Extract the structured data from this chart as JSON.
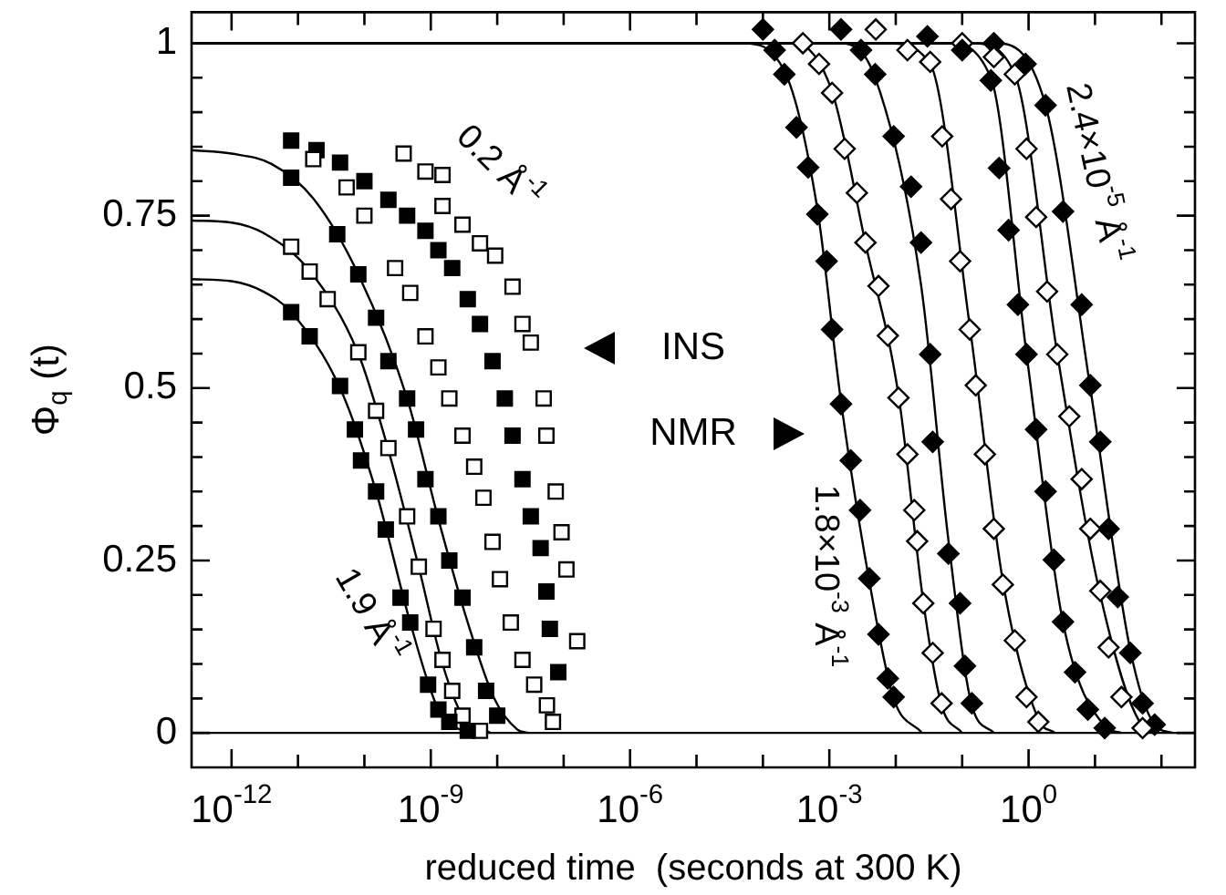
{
  "chart_data": {
    "type": "scatter",
    "xlabel": "reduced time  (seconds at 300 K)",
    "ylabel": "Φ$_{q}$ (t)",
    "log": "x",
    "xlim": [
      2.5e-13,
      320
    ],
    "ylim": [
      -0.05,
      1.045
    ],
    "xticks": [
      {
        "value": 1e-12,
        "label": "10$^{-12}$"
      },
      {
        "value": 1e-11,
        "label": null
      },
      {
        "value": 1e-10,
        "label": null
      },
      {
        "value": 1e-09,
        "label": "10$^{-9}$"
      },
      {
        "value": 1e-08,
        "label": null
      },
      {
        "value": 1e-07,
        "label": null
      },
      {
        "value": 1e-06,
        "label": "10$^{-6}$"
      },
      {
        "value": 1e-05,
        "label": null
      },
      {
        "value": 0.0001,
        "label": null
      },
      {
        "value": 0.001,
        "label": "10$^{-3}$"
      },
      {
        "value": 0.01,
        "label": null
      },
      {
        "value": 0.1,
        "label": null
      },
      {
        "value": 1,
        "label": "10$^{0}$"
      },
      {
        "value": 10,
        "label": null
      },
      {
        "value": 100,
        "label": null
      }
    ],
    "yticks": [
      0,
      {
        "value": 0.05,
        "label": null
      },
      {
        "value": 0.1,
        "label": null
      },
      {
        "value": 0.15,
        "label": null
      },
      {
        "value": 0.2,
        "label": null
      },
      0.25,
      {
        "value": 0.3,
        "label": null
      },
      {
        "value": 0.35,
        "label": null
      },
      {
        "value": 0.4,
        "label": null
      },
      {
        "value": 0.45,
        "label": null
      },
      0.5,
      {
        "value": 0.55,
        "label": null
      },
      {
        "value": 0.6,
        "label": null
      },
      {
        "value": 0.65,
        "label": null
      },
      {
        "value": 0.7,
        "label": null
      },
      0.75,
      {
        "value": 0.8,
        "label": null
      },
      {
        "value": 0.85,
        "label": null
      },
      {
        "value": 0.9,
        "label": null
      },
      {
        "value": 0.95,
        "label": null
      },
      1
    ],
    "ref_lines": [
      {
        "axis": "y",
        "value": 0,
        "color": "#000000"
      }
    ],
    "annotations": [
      "INS",
      "NMR",
      "0.2 Å$^{-1}$",
      "1.9 Å$^{-1}$",
      "1.8×10$^{-3}$ Å$^{-1}$",
      "2.4×10$^{-5}$ Å$^{-1}$"
    ],
    "series": [
      {
        "marker": "square",
        "color": "#000000",
        "x": [
          7.9e-12,
          1.5e-11,
          4.3e-11,
          7.2e-11,
          8.9e-11,
          1.5e-10,
          2.1e-10,
          3.5e-10,
          4.9e-10,
          9.1e-10,
          1.3e-09,
          1.9e-09,
          3.6e-09
        ],
        "values": [
          0.61,
          0.575,
          0.503,
          0.44,
          0.395,
          0.35,
          0.295,
          0.196,
          0.16,
          0.07,
          0.034,
          0.016,
          0.003
        ]
      },
      {
        "marker": "square",
        "color": "#ffffff",
        "x": [
          7.9e-12,
          1.5e-11,
          2.8e-11,
          8.1e-11,
          1.5e-10,
          2.3e-10,
          4.4e-10,
          6.6e-10,
          1.1e-09,
          1.5e-09,
          2.1e-09,
          3e-09,
          5.5e-09
        ],
        "values": [
          0.705,
          0.669,
          0.629,
          0.552,
          0.467,
          0.413,
          0.314,
          0.241,
          0.151,
          0.106,
          0.061,
          0.025,
          0.003
        ]
      },
      {
        "marker": "square",
        "color": "#000000",
        "x": [
          7.9e-12,
          3.9e-11,
          8.1e-11,
          1.5e-10,
          2.3e-10,
          4.4e-10,
          6e-10,
          8.3e-10,
          1.3e-09,
          1.9e-09,
          3e-09,
          4.5e-09,
          6.8e-09,
          1e-08
        ],
        "values": [
          0.805,
          0.723,
          0.665,
          0.602,
          0.539,
          0.485,
          0.44,
          0.368,
          0.314,
          0.25,
          0.196,
          0.124,
          0.061,
          0.025
        ]
      },
      {
        "marker": "square",
        "color": "#ffffff",
        "x": [
          1.7e-11,
          5.4e-11,
          1e-10,
          2.9e-10,
          4.9e-10,
          8.3e-10,
          1.3e-09,
          1.9e-09,
          3e-09,
          4.5e-09,
          6.2e-09,
          8.5e-09,
          1.1e-08,
          1.6e-08,
          2.4e-08,
          3.6e-08,
          6.9e-08
        ],
        "values": [
          0.832,
          0.791,
          0.75,
          0.674,
          0.638,
          0.575,
          0.53,
          0.485,
          0.431,
          0.386,
          0.341,
          0.277,
          0.223,
          0.16,
          0.106,
          0.07,
          0.016
        ]
      },
      {
        "marker": "square",
        "color": "#000000",
        "x": [
          7.9e-12,
          1.9e-11,
          4.3e-11,
          1e-10,
          2.3e-10,
          4.4e-10,
          8.3e-10,
          1.3e-09,
          2.1e-09,
          3.6e-09,
          5.5e-09,
          8.5e-09,
          1.3e-08,
          1.7e-08,
          2.4e-08,
          3.2e-08,
          4.5e-08,
          5.5e-08,
          6.2e-08,
          8.3e-08
        ],
        "values": [
          0.859,
          0.845,
          0.827,
          0.8,
          0.773,
          0.75,
          0.728,
          0.7,
          0.674,
          0.629,
          0.593,
          0.539,
          0.485,
          0.431,
          0.368,
          0.314,
          0.268,
          0.205,
          0.151,
          0.088
        ]
      },
      {
        "marker": "square",
        "color": "#ffffff",
        "x": [
          3.9e-10,
          8.3e-10,
          1.5e-09,
          1.5e-09,
          3e-09,
          5.5e-09,
          9.3e-09,
          1.7e-08,
          2.4e-08,
          3.2e-08,
          5e-08,
          5.5e-08,
          7.6e-08,
          9.3e-08,
          1.1e-07,
          1.6e-07,
          5.6e-08
        ],
        "values": [
          0.84,
          0.814,
          0.809,
          0.764,
          0.737,
          0.71,
          0.692,
          0.647,
          0.593,
          0.566,
          0.485,
          0.431,
          0.35,
          0.291,
          0.237,
          0.133,
          0.04
        ]
      },
      {
        "marker": "diamond",
        "color": "#000000",
        "x": [
          0.0001,
          0.00015,
          0.00021,
          0.00032,
          0.00048,
          0.00066,
          0.00091,
          0.0011,
          0.0015,
          0.0021,
          0.0029,
          0.004,
          0.0055,
          0.0076,
          0.0093
        ],
        "values": [
          1.02,
          0.99,
          0.955,
          0.878,
          0.82,
          0.752,
          0.684,
          0.585,
          0.477,
          0.395,
          0.323,
          0.224,
          0.143,
          0.079,
          0.052
        ]
      },
      {
        "marker": "diamond",
        "color": "#ffffff",
        "x": [
          0.0004,
          0.0007,
          0.0011,
          0.0017,
          0.0026,
          0.0035,
          0.0055,
          0.0076,
          0.011,
          0.015,
          0.019,
          0.021,
          0.026,
          0.036,
          0.049
        ],
        "values": [
          1.0,
          0.97,
          0.928,
          0.847,
          0.783,
          0.711,
          0.648,
          0.576,
          0.486,
          0.404,
          0.323,
          0.278,
          0.188,
          0.116,
          0.043
        ]
      },
      {
        "marker": "diamond",
        "color": "#000000",
        "x": [
          0.0015,
          0.003,
          0.0049,
          0.0093,
          0.017,
          0.024,
          0.033,
          0.036,
          0.062,
          0.093,
          0.11,
          0.14
        ],
        "values": [
          1.02,
          0.99,
          0.955,
          0.865,
          0.792,
          0.711,
          0.549,
          0.422,
          0.26,
          0.188,
          0.097,
          0.043
        ]
      },
      {
        "marker": "diamond",
        "color": "#ffffff",
        "x": [
          0.005,
          0.015,
          0.033,
          0.05,
          0.068,
          0.093,
          0.13,
          0.16,
          0.22,
          0.3,
          0.41,
          0.62,
          0.93,
          1.4
        ],
        "values": [
          1.02,
          0.99,
          0.973,
          0.865,
          0.774,
          0.684,
          0.585,
          0.504,
          0.404,
          0.296,
          0.215,
          0.134,
          0.052,
          0.016
        ]
      },
      {
        "marker": "diamond",
        "color": "#000000",
        "x": [
          0.03,
          0.1,
          0.27,
          0.36,
          0.5,
          0.69,
          0.93,
          1.3,
          1.8,
          2.4,
          3.3,
          5.0,
          7.8,
          14
        ],
        "values": [
          1.01,
          0.99,
          0.946,
          0.819,
          0.729,
          0.621,
          0.549,
          0.44,
          0.35,
          0.251,
          0.161,
          0.088,
          0.034,
          0.007
        ]
      },
      {
        "marker": "diamond",
        "color": "#ffffff",
        "x": [
          0.1,
          0.3,
          0.62,
          0.93,
          1.3,
          1.9,
          2.7,
          4.1,
          6.3,
          8.5,
          12,
          16,
          25,
          52
        ],
        "values": [
          1.0,
          0.98,
          0.955,
          0.847,
          0.748,
          0.64,
          0.549,
          0.459,
          0.368,
          0.296,
          0.206,
          0.124,
          0.052,
          0.007
        ]
      },
      {
        "marker": "diamond",
        "color": "#000000",
        "x": [
          0.3,
          0.9,
          1.8,
          3.3,
          6.3,
          8.5,
          12,
          16,
          22,
          34,
          52,
          79
        ],
        "values": [
          1.0,
          0.97,
          0.91,
          0.756,
          0.621,
          0.504,
          0.422,
          0.296,
          0.197,
          0.116,
          0.043,
          0.012
        ]
      },
      {
        "type": "line",
        "marker": "none",
        "color": "#000000",
        "x": [
          2.5e-13,
          1e-12,
          3e-12,
          7.9e-12,
          4.3e-11,
          1.5e-10,
          4.9e-10,
          1.3e-09,
          3e-09,
          4e-09
        ],
        "values": [
          0.658,
          0.655,
          0.64,
          0.61,
          0.5,
          0.35,
          0.16,
          0.034,
          0.003,
          0
        ]
      },
      {
        "type": "line",
        "marker": "none",
        "color": "#000000",
        "x": [
          2.5e-13,
          1e-12,
          3e-12,
          1.5e-11,
          8.1e-11,
          2.3e-10,
          6.6e-10,
          1.5e-09,
          3e-09,
          8e-09
        ],
        "values": [
          0.743,
          0.74,
          0.725,
          0.67,
          0.55,
          0.41,
          0.24,
          0.1,
          0.025,
          0
        ]
      },
      {
        "type": "line",
        "marker": "none",
        "color": "#000000",
        "x": [
          2.5e-13,
          1e-12,
          4e-12,
          1.7e-11,
          8.1e-11,
          4.4e-10,
          1.3e-09,
          3.6e-09,
          9e-09,
          2e-08,
          3e-08
        ],
        "values": [
          0.845,
          0.84,
          0.825,
          0.775,
          0.665,
          0.485,
          0.31,
          0.16,
          0.05,
          0.005,
          0
        ]
      },
      {
        "type": "line",
        "marker": "none",
        "color": "#000000",
        "x": [
          2.5e-13,
          5e-05,
          0.00021,
          0.00066,
          0.0015,
          0.004,
          0.0093,
          0.025
        ],
        "values": [
          1,
          1,
          0.96,
          0.76,
          0.48,
          0.22,
          0.05,
          0
        ]
      },
      {
        "type": "line",
        "marker": "none",
        "color": "#000000",
        "x": [
          2.5e-13,
          0.0003,
          0.0011,
          0.0035,
          0.011,
          0.026,
          0.049,
          0.1
        ],
        "values": [
          1,
          1,
          0.93,
          0.71,
          0.49,
          0.19,
          0.04,
          0
        ]
      },
      {
        "type": "line",
        "marker": "none",
        "color": "#000000",
        "x": [
          2.5e-13,
          0.0015,
          0.0049,
          0.024,
          0.062,
          0.14,
          0.3
        ],
        "values": [
          1,
          1,
          0.95,
          0.65,
          0.28,
          0.04,
          0
        ]
      },
      {
        "type": "line",
        "marker": "none",
        "color": "#000000",
        "x": [
          2.5e-13,
          0.008,
          0.033,
          0.13,
          0.41,
          1.4,
          2.5
        ],
        "values": [
          1,
          1,
          0.97,
          0.59,
          0.22,
          0.02,
          0
        ]
      },
      {
        "type": "line",
        "marker": "none",
        "color": "#000000",
        "x": [
          2.5e-13,
          0.06,
          0.27,
          0.93,
          3.3,
          14,
          25
        ],
        "values": [
          1,
          1,
          0.95,
          0.55,
          0.16,
          0.01,
          0
        ]
      },
      {
        "type": "line",
        "marker": "none",
        "color": "#000000",
        "x": [
          2.5e-13,
          0.15,
          0.62,
          2.7,
          12,
          52,
          90
        ],
        "values": [
          1,
          1,
          0.955,
          0.55,
          0.2,
          0.01,
          0
        ]
      },
      {
        "type": "line",
        "marker": "none",
        "color": "#000000",
        "x": [
          2.5e-13,
          0.3,
          1.8,
          8.5,
          34,
          79,
          150
        ],
        "values": [
          1,
          1,
          0.91,
          0.5,
          0.12,
          0.012,
          0
        ]
      }
    ]
  }
}
